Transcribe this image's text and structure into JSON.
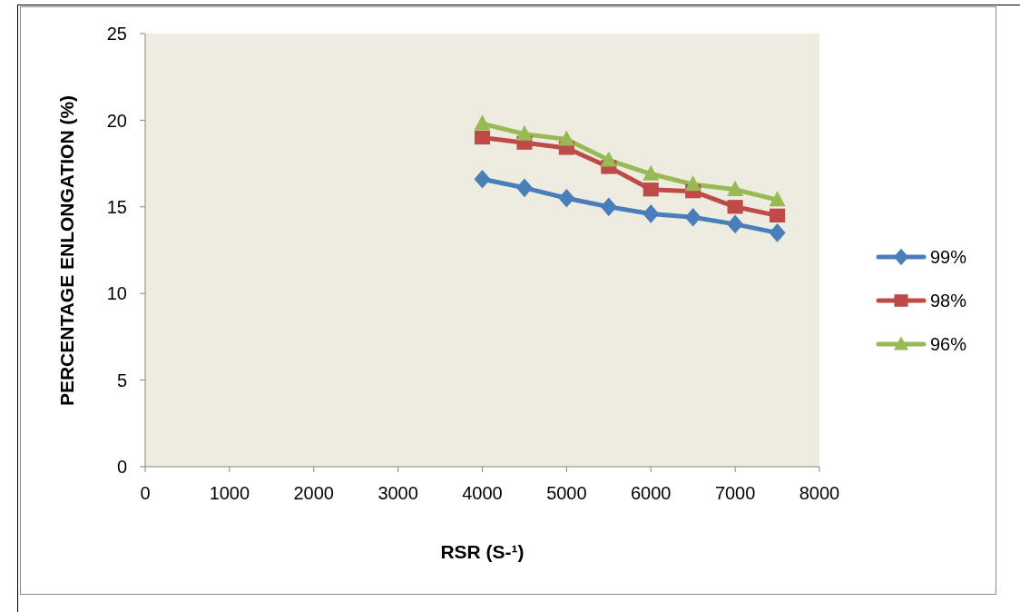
{
  "chart_data": {
    "type": "line",
    "xlabel": "RSR (S-¹)",
    "ylabel": "PERCENTAGE ENLONGATION (%)",
    "x": [
      4000,
      4500,
      5000,
      5500,
      6000,
      6500,
      7000,
      7500
    ],
    "series": [
      {
        "name": "99%",
        "color": "#4a7ebb",
        "marker": "diamond",
        "values": [
          16.6,
          16.1,
          15.5,
          15.0,
          14.6,
          14.4,
          14.0,
          13.5
        ]
      },
      {
        "name": "98%",
        "color": "#be4b48",
        "marker": "square",
        "values": [
          19.0,
          18.7,
          18.4,
          17.3,
          16.0,
          15.9,
          15.0,
          14.5
        ]
      },
      {
        "name": "96%",
        "color": "#98b954",
        "marker": "triangle",
        "values": [
          19.8,
          19.2,
          18.9,
          17.7,
          16.9,
          16.3,
          16.0,
          15.4
        ]
      }
    ],
    "xlim": [
      0,
      8000
    ],
    "xticks": [
      0,
      1000,
      2000,
      3000,
      4000,
      5000,
      6000,
      7000,
      8000
    ],
    "ylim": [
      0,
      25
    ],
    "yticks": [
      0,
      5,
      10,
      15,
      20,
      25
    ],
    "legend": "right"
  }
}
